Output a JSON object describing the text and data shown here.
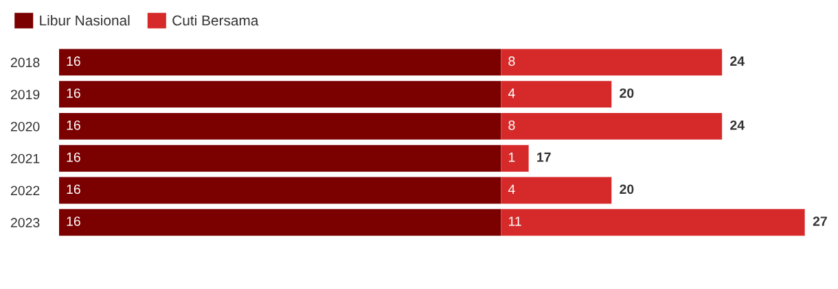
{
  "chart_data": {
    "type": "bar",
    "orientation": "horizontal",
    "stacked": true,
    "categories": [
      "2018",
      "2019",
      "2020",
      "2021",
      "2022",
      "2023"
    ],
    "series": [
      {
        "name": "Libur Nasional",
        "color": "#7b0000",
        "values": [
          16,
          16,
          16,
          16,
          16,
          16
        ]
      },
      {
        "name": "Cuti Bersama",
        "color": "#d62a2a",
        "values": [
          8,
          4,
          8,
          1,
          4,
          11
        ]
      }
    ],
    "data_labels": true,
    "totals": [
      "24",
      "20",
      "24",
      "17",
      "20",
      "27"
    ],
    "legend": "top left",
    "tick_labels": "y",
    "grid": false
  }
}
